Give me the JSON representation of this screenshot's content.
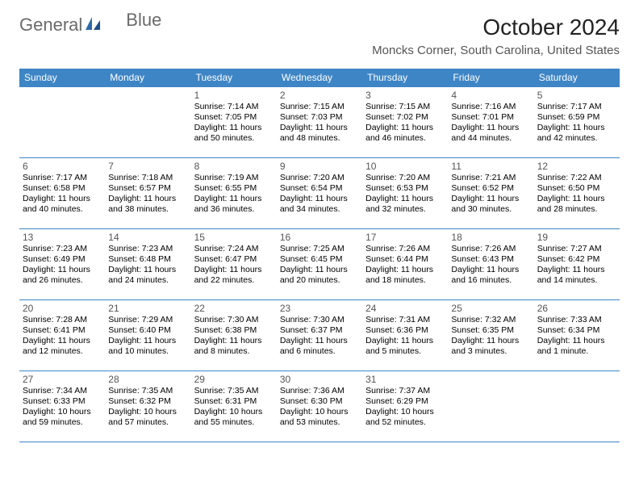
{
  "brand": {
    "word1": "General",
    "word2": "Blue",
    "logo_text_color": "#6a6a6a",
    "logo_accent_color": "#2f6aa8"
  },
  "title": "October 2024",
  "location": "Moncks Corner, South Carolina, United States",
  "colors": {
    "header_bg": "#3e85c6",
    "header_text": "#ffffff",
    "cell_border": "#3e85c6",
    "page_bg": "#ffffff",
    "body_text": "#000000",
    "daynum_text": "#555555"
  },
  "day_labels": [
    "Sunday",
    "Monday",
    "Tuesday",
    "Wednesday",
    "Thursday",
    "Friday",
    "Saturday"
  ],
  "weeks": [
    [
      null,
      null,
      {
        "n": "1",
        "sr": "Sunrise: 7:14 AM",
        "ss": "Sunset: 7:05 PM",
        "d1": "Daylight: 11 hours",
        "d2": "and 50 minutes."
      },
      {
        "n": "2",
        "sr": "Sunrise: 7:15 AM",
        "ss": "Sunset: 7:03 PM",
        "d1": "Daylight: 11 hours",
        "d2": "and 48 minutes."
      },
      {
        "n": "3",
        "sr": "Sunrise: 7:15 AM",
        "ss": "Sunset: 7:02 PM",
        "d1": "Daylight: 11 hours",
        "d2": "and 46 minutes."
      },
      {
        "n": "4",
        "sr": "Sunrise: 7:16 AM",
        "ss": "Sunset: 7:01 PM",
        "d1": "Daylight: 11 hours",
        "d2": "and 44 minutes."
      },
      {
        "n": "5",
        "sr": "Sunrise: 7:17 AM",
        "ss": "Sunset: 6:59 PM",
        "d1": "Daylight: 11 hours",
        "d2": "and 42 minutes."
      }
    ],
    [
      {
        "n": "6",
        "sr": "Sunrise: 7:17 AM",
        "ss": "Sunset: 6:58 PM",
        "d1": "Daylight: 11 hours",
        "d2": "and 40 minutes."
      },
      {
        "n": "7",
        "sr": "Sunrise: 7:18 AM",
        "ss": "Sunset: 6:57 PM",
        "d1": "Daylight: 11 hours",
        "d2": "and 38 minutes."
      },
      {
        "n": "8",
        "sr": "Sunrise: 7:19 AM",
        "ss": "Sunset: 6:55 PM",
        "d1": "Daylight: 11 hours",
        "d2": "and 36 minutes."
      },
      {
        "n": "9",
        "sr": "Sunrise: 7:20 AM",
        "ss": "Sunset: 6:54 PM",
        "d1": "Daylight: 11 hours",
        "d2": "and 34 minutes."
      },
      {
        "n": "10",
        "sr": "Sunrise: 7:20 AM",
        "ss": "Sunset: 6:53 PM",
        "d1": "Daylight: 11 hours",
        "d2": "and 32 minutes."
      },
      {
        "n": "11",
        "sr": "Sunrise: 7:21 AM",
        "ss": "Sunset: 6:52 PM",
        "d1": "Daylight: 11 hours",
        "d2": "and 30 minutes."
      },
      {
        "n": "12",
        "sr": "Sunrise: 7:22 AM",
        "ss": "Sunset: 6:50 PM",
        "d1": "Daylight: 11 hours",
        "d2": "and 28 minutes."
      }
    ],
    [
      {
        "n": "13",
        "sr": "Sunrise: 7:23 AM",
        "ss": "Sunset: 6:49 PM",
        "d1": "Daylight: 11 hours",
        "d2": "and 26 minutes."
      },
      {
        "n": "14",
        "sr": "Sunrise: 7:23 AM",
        "ss": "Sunset: 6:48 PM",
        "d1": "Daylight: 11 hours",
        "d2": "and 24 minutes."
      },
      {
        "n": "15",
        "sr": "Sunrise: 7:24 AM",
        "ss": "Sunset: 6:47 PM",
        "d1": "Daylight: 11 hours",
        "d2": "and 22 minutes."
      },
      {
        "n": "16",
        "sr": "Sunrise: 7:25 AM",
        "ss": "Sunset: 6:45 PM",
        "d1": "Daylight: 11 hours",
        "d2": "and 20 minutes."
      },
      {
        "n": "17",
        "sr": "Sunrise: 7:26 AM",
        "ss": "Sunset: 6:44 PM",
        "d1": "Daylight: 11 hours",
        "d2": "and 18 minutes."
      },
      {
        "n": "18",
        "sr": "Sunrise: 7:26 AM",
        "ss": "Sunset: 6:43 PM",
        "d1": "Daylight: 11 hours",
        "d2": "and 16 minutes."
      },
      {
        "n": "19",
        "sr": "Sunrise: 7:27 AM",
        "ss": "Sunset: 6:42 PM",
        "d1": "Daylight: 11 hours",
        "d2": "and 14 minutes."
      }
    ],
    [
      {
        "n": "20",
        "sr": "Sunrise: 7:28 AM",
        "ss": "Sunset: 6:41 PM",
        "d1": "Daylight: 11 hours",
        "d2": "and 12 minutes."
      },
      {
        "n": "21",
        "sr": "Sunrise: 7:29 AM",
        "ss": "Sunset: 6:40 PM",
        "d1": "Daylight: 11 hours",
        "d2": "and 10 minutes."
      },
      {
        "n": "22",
        "sr": "Sunrise: 7:30 AM",
        "ss": "Sunset: 6:38 PM",
        "d1": "Daylight: 11 hours",
        "d2": "and 8 minutes."
      },
      {
        "n": "23",
        "sr": "Sunrise: 7:30 AM",
        "ss": "Sunset: 6:37 PM",
        "d1": "Daylight: 11 hours",
        "d2": "and 6 minutes."
      },
      {
        "n": "24",
        "sr": "Sunrise: 7:31 AM",
        "ss": "Sunset: 6:36 PM",
        "d1": "Daylight: 11 hours",
        "d2": "and 5 minutes."
      },
      {
        "n": "25",
        "sr": "Sunrise: 7:32 AM",
        "ss": "Sunset: 6:35 PM",
        "d1": "Daylight: 11 hours",
        "d2": "and 3 minutes."
      },
      {
        "n": "26",
        "sr": "Sunrise: 7:33 AM",
        "ss": "Sunset: 6:34 PM",
        "d1": "Daylight: 11 hours",
        "d2": "and 1 minute."
      }
    ],
    [
      {
        "n": "27",
        "sr": "Sunrise: 7:34 AM",
        "ss": "Sunset: 6:33 PM",
        "d1": "Daylight: 10 hours",
        "d2": "and 59 minutes."
      },
      {
        "n": "28",
        "sr": "Sunrise: 7:35 AM",
        "ss": "Sunset: 6:32 PM",
        "d1": "Daylight: 10 hours",
        "d2": "and 57 minutes."
      },
      {
        "n": "29",
        "sr": "Sunrise: 7:35 AM",
        "ss": "Sunset: 6:31 PM",
        "d1": "Daylight: 10 hours",
        "d2": "and 55 minutes."
      },
      {
        "n": "30",
        "sr": "Sunrise: 7:36 AM",
        "ss": "Sunset: 6:30 PM",
        "d1": "Daylight: 10 hours",
        "d2": "and 53 minutes."
      },
      {
        "n": "31",
        "sr": "Sunrise: 7:37 AM",
        "ss": "Sunset: 6:29 PM",
        "d1": "Daylight: 10 hours",
        "d2": "and 52 minutes."
      },
      null,
      null
    ]
  ]
}
